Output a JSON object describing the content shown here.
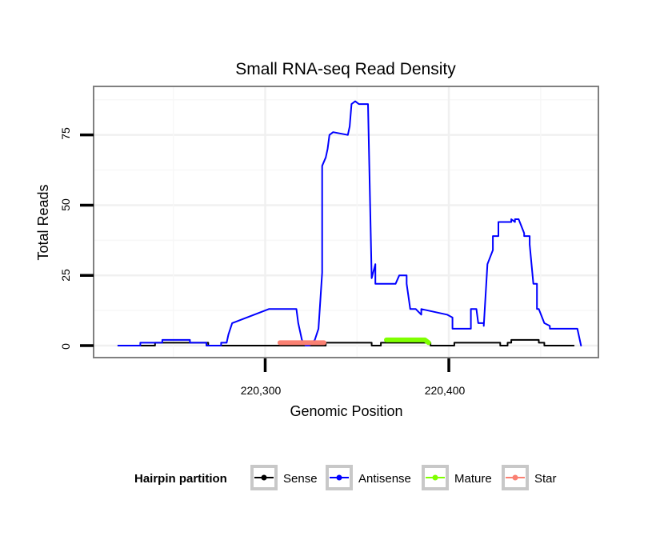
{
  "chart_data": {
    "type": "line",
    "title": "Small RNA-seq Read Density",
    "xlabel": "Genomic Position",
    "ylabel": "Total Reads",
    "xlim": [
      220207,
      220481
    ],
    "ylim": [
      -4,
      92
    ],
    "x_ticks": [
      220300,
      220400
    ],
    "x_tick_labels": [
      "220,300",
      "220,400"
    ],
    "y_ticks": [
      0,
      25,
      50,
      75
    ],
    "y_tick_labels": [
      "0",
      "25",
      "50",
      "75"
    ],
    "grid": true,
    "legend": {
      "title": "Hairpin partition",
      "position": "bottom",
      "entries": [
        "Sense",
        "Antisense",
        "Mature",
        "Star"
      ]
    },
    "colors": {
      "Sense": "#000000",
      "Antisense": "#0000ff",
      "Mature": "#7fff00",
      "Star": "#fa8072"
    },
    "series": [
      {
        "name": "Sense",
        "x": [
          220220,
          220240,
          220240,
          220252,
          220252,
          220263,
          220263,
          220269,
          220269,
          220302,
          220302,
          220333,
          220333,
          220355,
          220355,
          220358,
          220358,
          220360,
          220360,
          220363,
          220363,
          220390,
          220390,
          220394,
          220394,
          220403,
          220403,
          220428,
          220428,
          220432,
          220432,
          220434,
          220434,
          220449,
          220449,
          220452,
          220452,
          220456,
          220456,
          220468
        ],
        "y": [
          0,
          0,
          1,
          1,
          1,
          1,
          1,
          1,
          0,
          0,
          0,
          0,
          1,
          1,
          1,
          1,
          0,
          0,
          0,
          0,
          1,
          1,
          0,
          0,
          0,
          0,
          1,
          1,
          0,
          0,
          1,
          1,
          2,
          2,
          1,
          1,
          0,
          0,
          0,
          0
        ]
      },
      {
        "name": "Antisense",
        "x": [
          220220,
          220232,
          220232,
          220244,
          220244,
          220259,
          220259,
          220268,
          220268,
          220276,
          220276,
          220279,
          220280,
          220282,
          220302,
          220304,
          220304,
          220315,
          220317,
          220318,
          220320,
          220322,
          220324,
          220327,
          220329,
          220331,
          220331,
          220333,
          220334,
          220335,
          220337,
          220337,
          220345,
          220346,
          220347,
          220349,
          220351,
          220351,
          220356,
          220358,
          220360,
          220360,
          220371,
          220373,
          220373,
          220377,
          220377,
          220379,
          220380,
          220382,
          220382,
          220385,
          220385,
          220399,
          220402,
          220402,
          220412,
          220412,
          220415,
          220416,
          220416,
          220419,
          220419,
          220421,
          220421,
          220424,
          220424,
          220427,
          220427,
          220434,
          220434,
          220436,
          220436,
          220438,
          220441,
          220441,
          220444,
          220444,
          220446,
          220448,
          220448,
          220449,
          220449,
          220452,
          220452,
          220455,
          220455,
          220458,
          220458,
          220470,
          220472
        ],
        "y": [
          0,
          0,
          1,
          1,
          2,
          2,
          1,
          1,
          0,
          0,
          1,
          1,
          4,
          8,
          13,
          13,
          13,
          13,
          13,
          8,
          2,
          0,
          0,
          2,
          6,
          26,
          64,
          67,
          70,
          75,
          76,
          76,
          75,
          78,
          86,
          87,
          86,
          86,
          86,
          24,
          29,
          22,
          22,
          25,
          25,
          25,
          22,
          13,
          13,
          13,
          13,
          11,
          13,
          11,
          10,
          6,
          6,
          13,
          13,
          8,
          8,
          8,
          7,
          29,
          29,
          34,
          39,
          39,
          44,
          44,
          45,
          44,
          45,
          45,
          40,
          39,
          39,
          36,
          22,
          22,
          13,
          13,
          13,
          8,
          8,
          7,
          6,
          6,
          6,
          6,
          0
        ]
      },
      {
        "name": "Mature",
        "x": [
          220366,
          220387,
          220389
        ],
        "y": [
          2,
          2,
          1
        ]
      },
      {
        "name": "Star",
        "x": [
          220308,
          220332
        ],
        "y": [
          1,
          1
        ]
      }
    ]
  }
}
